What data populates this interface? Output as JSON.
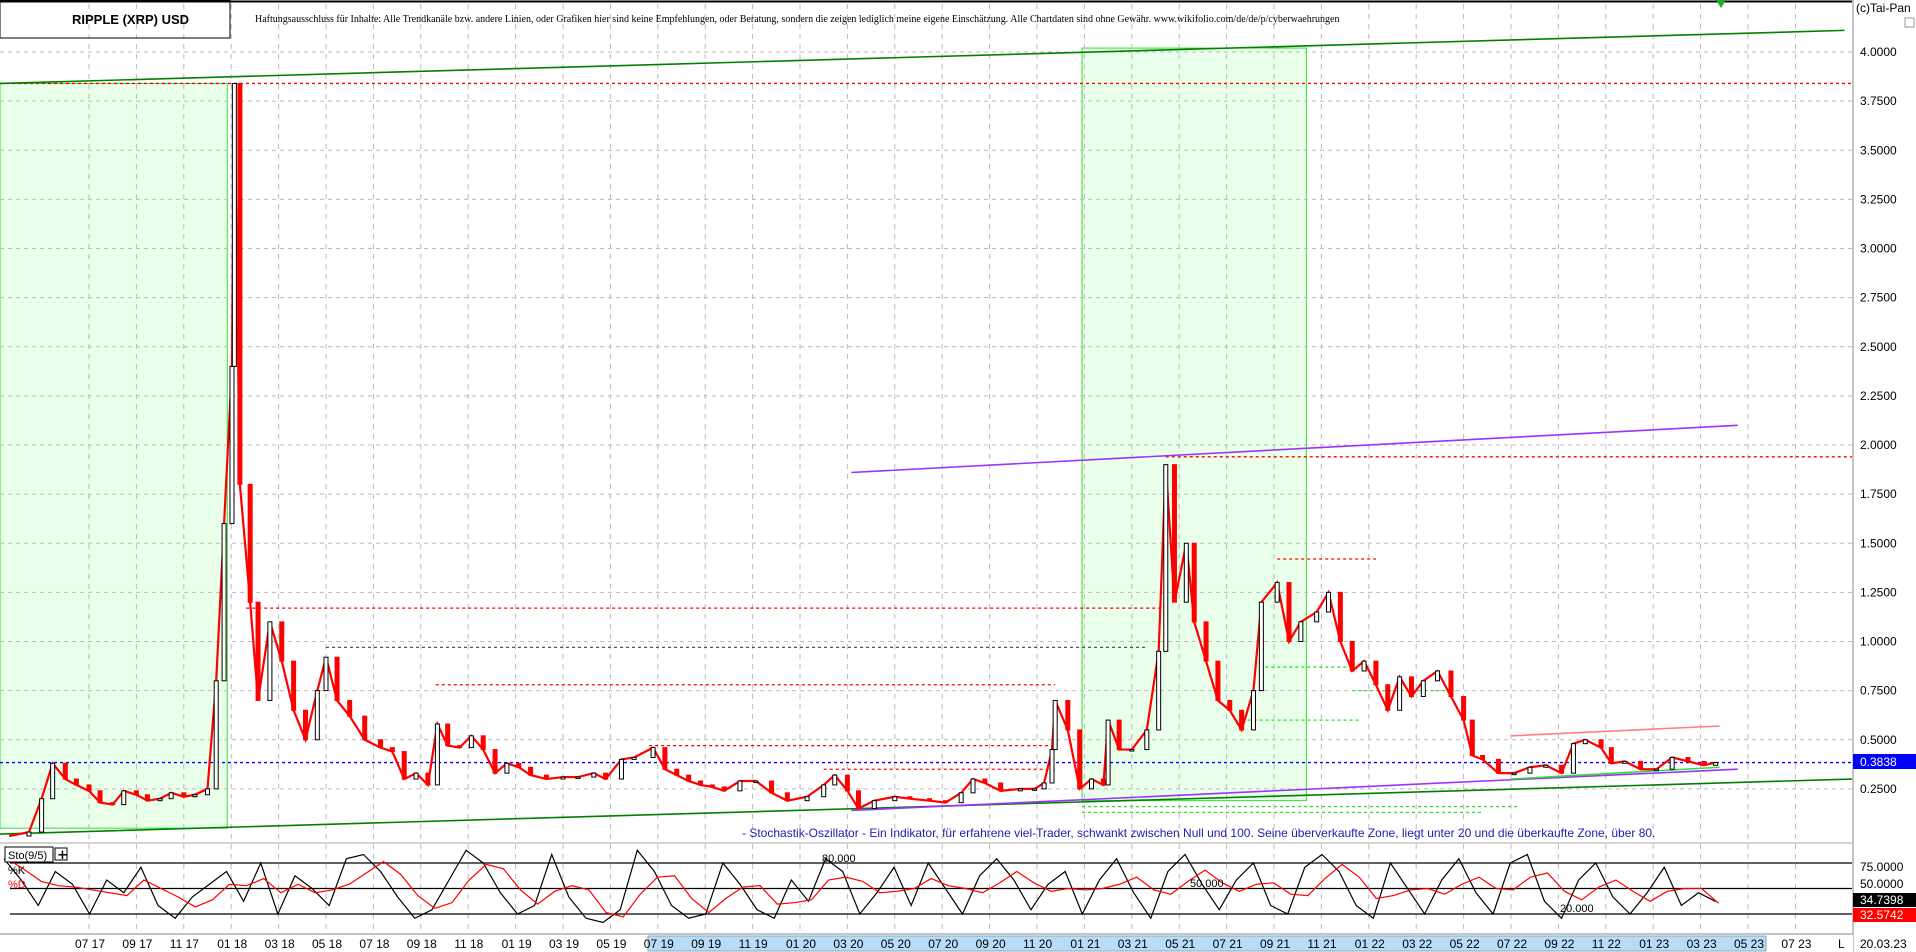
{
  "header": {
    "title": "RIPPLE (XRP) USD",
    "disclaimer": "Haftungsausschluss für Inhalte: Alle Trendkanäle bzw. andere Linien, oder Grafiken hier sind keine Empfehlungen, oder Beratung, sondern die zeigen lediglich meine eigene Einschätzung. Alle Chartdaten sind ohne Gewähr.  www.wikifolio.com/de/de/p/cyberwaehrungen",
    "copyright": "(c)Tai-Pan"
  },
  "annotation": "- Stochastik-Oszillator - Ein Indikator, für erfahrene viel-Trader, schwankt zwischen Null und 100. Seine überverkaufte Zone, liegt unter 20 und die überkaufte Zone, über 80.",
  "footer": {
    "date": "20.03.23",
    "scale_button": "L"
  },
  "colors": {
    "up": "#000000",
    "down": "#ff0000",
    "trend_green": "#008000",
    "zone_fill": "#eaffea",
    "zone_border": "#33dd33",
    "channel_purple": "#9933ff",
    "current_price": "#0000ff",
    "grid": "#bbbbbb",
    "axis_highlight": "#b8dcf8"
  },
  "chart_data": [
    {
      "type": "candlestick",
      "title": "RIPPLE (XRP) USD",
      "ylim": [
        0,
        4.0
      ],
      "yticks": [
        "0.2500",
        "0.5000",
        "0.7500",
        "1.0000",
        "1.2500",
        "1.5000",
        "1.7500",
        "2.0000",
        "2.2500",
        "2.5000",
        "2.7500",
        "3.0000",
        "3.2500",
        "3.5000",
        "3.7500",
        "4.0000"
      ],
      "xticks": [
        "07 17",
        "09 17",
        "11 17",
        "01 18",
        "03 18",
        "05 18",
        "07 18",
        "09 18",
        "11 18",
        "01 19",
        "03 19",
        "05 19",
        "07 19",
        "09 19",
        "11 19",
        "01 20",
        "03 20",
        "05 20",
        "07 20",
        "09 20",
        "11 20",
        "01 21",
        "03 21",
        "05 21",
        "07 21",
        "09 21",
        "11 21",
        "01 22",
        "03 22",
        "05 22",
        "07 22",
        "09 22",
        "11 22",
        "01 23",
        "03 23",
        "05 23",
        "07 23"
      ],
      "grid": true,
      "current_price": "0.3838",
      "series": [
        {
          "date": "2017-03-20",
          "close": 0.01
        },
        {
          "date": "2017-04-15",
          "close": 0.03
        },
        {
          "date": "2017-05-01",
          "close": 0.2
        },
        {
          "date": "2017-05-15",
          "close": 0.38
        },
        {
          "date": "2017-06-01",
          "close": 0.3
        },
        {
          "date": "2017-06-15",
          "close": 0.27
        },
        {
          "date": "2017-07-01",
          "close": 0.24
        },
        {
          "date": "2017-07-15",
          "close": 0.18
        },
        {
          "date": "2017-08-01",
          "close": 0.17
        },
        {
          "date": "2017-08-15",
          "close": 0.24
        },
        {
          "date": "2017-09-01",
          "close": 0.22
        },
        {
          "date": "2017-09-15",
          "close": 0.19
        },
        {
          "date": "2017-10-01",
          "close": 0.2
        },
        {
          "date": "2017-10-15",
          "close": 0.23
        },
        {
          "date": "2017-11-01",
          "close": 0.21
        },
        {
          "date": "2017-11-15",
          "close": 0.22
        },
        {
          "date": "2017-12-01",
          "close": 0.25
        },
        {
          "date": "2017-12-12",
          "close": 0.8
        },
        {
          "date": "2017-12-22",
          "close": 1.6
        },
        {
          "date": "2018-01-02",
          "close": 2.4
        },
        {
          "date": "2018-01-05",
          "close": 3.84
        },
        {
          "date": "2018-01-12",
          "close": 1.8
        },
        {
          "date": "2018-01-25",
          "close": 1.2
        },
        {
          "date": "2018-02-05",
          "close": 0.7
        },
        {
          "date": "2018-02-20",
          "close": 1.1
        },
        {
          "date": "2018-03-05",
          "close": 0.9
        },
        {
          "date": "2018-03-20",
          "close": 0.65
        },
        {
          "date": "2018-04-05",
          "close": 0.5
        },
        {
          "date": "2018-04-20",
          "close": 0.75
        },
        {
          "date": "2018-05-01",
          "close": 0.92
        },
        {
          "date": "2018-05-15",
          "close": 0.7
        },
        {
          "date": "2018-06-01",
          "close": 0.62
        },
        {
          "date": "2018-06-20",
          "close": 0.5
        },
        {
          "date": "2018-07-10",
          "close": 0.46
        },
        {
          "date": "2018-07-25",
          "close": 0.44
        },
        {
          "date": "2018-08-10",
          "close": 0.3
        },
        {
          "date": "2018-08-25",
          "close": 0.33
        },
        {
          "date": "2018-09-10",
          "close": 0.27
        },
        {
          "date": "2018-09-22",
          "close": 0.58
        },
        {
          "date": "2018-10-05",
          "close": 0.47
        },
        {
          "date": "2018-10-20",
          "close": 0.46
        },
        {
          "date": "2018-11-05",
          "close": 0.52
        },
        {
          "date": "2018-11-20",
          "close": 0.45
        },
        {
          "date": "2018-12-05",
          "close": 0.33
        },
        {
          "date": "2018-12-20",
          "close": 0.38
        },
        {
          "date": "2019-01-05",
          "close": 0.36
        },
        {
          "date": "2019-01-20",
          "close": 0.32
        },
        {
          "date": "2019-02-10",
          "close": 0.3
        },
        {
          "date": "2019-03-01",
          "close": 0.31
        },
        {
          "date": "2019-03-20",
          "close": 0.31
        },
        {
          "date": "2019-04-10",
          "close": 0.33
        },
        {
          "date": "2019-04-25",
          "close": 0.3
        },
        {
          "date": "2019-05-15",
          "close": 0.4
        },
        {
          "date": "2019-06-01",
          "close": 0.41
        },
        {
          "date": "2019-06-25",
          "close": 0.46
        },
        {
          "date": "2019-07-10",
          "close": 0.35
        },
        {
          "date": "2019-07-25",
          "close": 0.32
        },
        {
          "date": "2019-08-10",
          "close": 0.29
        },
        {
          "date": "2019-08-25",
          "close": 0.27
        },
        {
          "date": "2019-09-10",
          "close": 0.26
        },
        {
          "date": "2019-09-25",
          "close": 0.24
        },
        {
          "date": "2019-10-15",
          "close": 0.29
        },
        {
          "date": "2019-11-05",
          "close": 0.29
        },
        {
          "date": "2019-11-25",
          "close": 0.23
        },
        {
          "date": "2019-12-15",
          "close": 0.19
        },
        {
          "date": "2020-01-10",
          "close": 0.21
        },
        {
          "date": "2020-02-01",
          "close": 0.27
        },
        {
          "date": "2020-02-15",
          "close": 0.32
        },
        {
          "date": "2020-03-01",
          "close": 0.24
        },
        {
          "date": "2020-03-15",
          "close": 0.15
        },
        {
          "date": "2020-04-05",
          "close": 0.19
        },
        {
          "date": "2020-05-01",
          "close": 0.21
        },
        {
          "date": "2020-05-20",
          "close": 0.2
        },
        {
          "date": "2020-06-15",
          "close": 0.19
        },
        {
          "date": "2020-07-05",
          "close": 0.18
        },
        {
          "date": "2020-07-25",
          "close": 0.23
        },
        {
          "date": "2020-08-10",
          "close": 0.3
        },
        {
          "date": "2020-08-25",
          "close": 0.28
        },
        {
          "date": "2020-09-15",
          "close": 0.24
        },
        {
          "date": "2020-10-10",
          "close": 0.25
        },
        {
          "date": "2020-10-28",
          "close": 0.25
        },
        {
          "date": "2020-11-10",
          "close": 0.28
        },
        {
          "date": "2020-11-20",
          "close": 0.45
        },
        {
          "date": "2020-11-24",
          "close": 0.7
        },
        {
          "date": "2020-12-10",
          "close": 0.55
        },
        {
          "date": "2020-12-25",
          "close": 0.25
        },
        {
          "date": "2021-01-10",
          "close": 0.3
        },
        {
          "date": "2021-01-25",
          "close": 0.27
        },
        {
          "date": "2021-02-01",
          "close": 0.6
        },
        {
          "date": "2021-02-15",
          "close": 0.45
        },
        {
          "date": "2021-03-01",
          "close": 0.45
        },
        {
          "date": "2021-03-20",
          "close": 0.55
        },
        {
          "date": "2021-04-05",
          "close": 0.95
        },
        {
          "date": "2021-04-14",
          "close": 1.9
        },
        {
          "date": "2021-04-25",
          "close": 1.2
        },
        {
          "date": "2021-05-10",
          "close": 1.5
        },
        {
          "date": "2021-05-20",
          "close": 1.1
        },
        {
          "date": "2021-06-05",
          "close": 0.9
        },
        {
          "date": "2021-06-20",
          "close": 0.7
        },
        {
          "date": "2021-07-05",
          "close": 0.65
        },
        {
          "date": "2021-07-20",
          "close": 0.55
        },
        {
          "date": "2021-08-05",
          "close": 0.75
        },
        {
          "date": "2021-08-15",
          "close": 1.2
        },
        {
          "date": "2021-09-05",
          "close": 1.3
        },
        {
          "date": "2021-09-20",
          "close": 1.0
        },
        {
          "date": "2021-10-05",
          "close": 1.1
        },
        {
          "date": "2021-10-25",
          "close": 1.15
        },
        {
          "date": "2021-11-10",
          "close": 1.25
        },
        {
          "date": "2021-11-25",
          "close": 1.0
        },
        {
          "date": "2021-12-10",
          "close": 0.85
        },
        {
          "date": "2021-12-25",
          "close": 0.9
        },
        {
          "date": "2022-01-10",
          "close": 0.78
        },
        {
          "date": "2022-01-25",
          "close": 0.65
        },
        {
          "date": "2022-02-10",
          "close": 0.82
        },
        {
          "date": "2022-02-25",
          "close": 0.72
        },
        {
          "date": "2022-03-10",
          "close": 0.8
        },
        {
          "date": "2022-03-28",
          "close": 0.85
        },
        {
          "date": "2022-04-15",
          "close": 0.72
        },
        {
          "date": "2022-05-01",
          "close": 0.6
        },
        {
          "date": "2022-05-12",
          "close": 0.42
        },
        {
          "date": "2022-05-25",
          "close": 0.4
        },
        {
          "date": "2022-06-15",
          "close": 0.33
        },
        {
          "date": "2022-07-05",
          "close": 0.33
        },
        {
          "date": "2022-07-25",
          "close": 0.36
        },
        {
          "date": "2022-08-15",
          "close": 0.37
        },
        {
          "date": "2022-09-05",
          "close": 0.33
        },
        {
          "date": "2022-09-20",
          "close": 0.48
        },
        {
          "date": "2022-10-05",
          "close": 0.5
        },
        {
          "date": "2022-10-25",
          "close": 0.46
        },
        {
          "date": "2022-11-08",
          "close": 0.38
        },
        {
          "date": "2022-11-25",
          "close": 0.39
        },
        {
          "date": "2022-12-15",
          "close": 0.35
        },
        {
          "date": "2023-01-05",
          "close": 0.35
        },
        {
          "date": "2023-01-25",
          "close": 0.41
        },
        {
          "date": "2023-02-15",
          "close": 0.39
        },
        {
          "date": "2023-03-05",
          "close": 0.37
        },
        {
          "date": "2023-03-20",
          "close": 0.3838
        }
      ],
      "horizontal_lines": [
        {
          "price": 3.84,
          "from": "2017-03-08",
          "to": "2023-12-31",
          "color": "#ff0000"
        },
        {
          "price": 1.94,
          "from": "2021-04-14",
          "to": "2023-12-31",
          "color": "#ff0000"
        },
        {
          "price": 1.17,
          "from": "2018-01-20",
          "to": "2021-04-10",
          "color": "#ff0000"
        },
        {
          "price": 0.97,
          "from": "2018-05-01",
          "to": "2021-03-20",
          "color": "#555555"
        },
        {
          "price": 0.78,
          "from": "2018-09-20",
          "to": "2020-11-24",
          "color": "#ff0000"
        },
        {
          "price": 0.47,
          "from": "2019-06-20",
          "to": "2020-11-24",
          "color": "#ff0000"
        },
        {
          "price": 0.35,
          "from": "2020-02-01",
          "to": "2020-11-24",
          "color": "#ff0000"
        },
        {
          "price": 1.42,
          "from": "2021-09-05",
          "to": "2022-01-10",
          "color": "#ff0000"
        },
        {
          "price": 0.87,
          "from": "2021-08-20",
          "to": "2021-12-20",
          "color": "#33dd33"
        },
        {
          "price": 0.75,
          "from": "2021-12-10",
          "to": "2022-04-20",
          "color": "#33dd33"
        },
        {
          "price": 0.6,
          "from": "2021-07-20",
          "to": "2021-12-20",
          "color": "#33dd33"
        },
        {
          "price": 0.16,
          "from": "2020-12-28",
          "to": "2022-07-10",
          "color": "#33dd33"
        },
        {
          "price": 0.13,
          "from": "2020-12-28",
          "to": "2022-05-25",
          "color": "#33dd33"
        },
        {
          "price": 0.3838,
          "from": "2017-03-08",
          "to": "2023-12-31",
          "color": "#0000ff"
        }
      ],
      "trend_lines": [
        {
          "from": [
            "2017-03-08",
            3.84
          ],
          "to": [
            "2023-09-03",
            4.11
          ],
          "color": "#008000"
        },
        {
          "from": [
            "2017-03-08",
            0.02
          ],
          "to": [
            "2023-12-31",
            0.3
          ],
          "color": "#008000"
        },
        {
          "from": [
            "2020-03-06",
            1.86
          ],
          "to": [
            "2023-04-18",
            2.1
          ],
          "color": "#9933ff"
        },
        {
          "from": [
            "2020-03-06",
            0.14
          ],
          "to": [
            "2023-04-18",
            0.35
          ],
          "color": "#9933ff"
        },
        {
          "from": [
            "2022-07-01",
            0.52
          ],
          "to": [
            "2023-03-25",
            0.57
          ],
          "color": "#ff8080"
        },
        {
          "from": [
            "2022-07-01",
            0.3
          ],
          "to": [
            "2023-03-25",
            0.36
          ],
          "color": "#33dd33"
        }
      ],
      "zones": [
        {
          "from": "2017-03-08",
          "to": "2017-12-26",
          "low": 0.05,
          "high": 3.84
        },
        {
          "from": "2020-12-28",
          "to": "2021-10-12",
          "low": 0.19,
          "high": 4.02
        }
      ]
    },
    {
      "type": "line",
      "title": "Sto(9/5)",
      "legend": [
        "%K",
        "%D"
      ],
      "levels": [
        "80.000",
        "50.000",
        "20.000"
      ],
      "yticks": [
        "75.0000",
        "50.0000"
      ],
      "last_k": "34.7398",
      "last_d": "32.5742",
      "ylim": [
        0,
        100
      ],
      "k": [
        85,
        60,
        30,
        70,
        55,
        20,
        60,
        45,
        75,
        30,
        15,
        40,
        55,
        70,
        35,
        80,
        20,
        65,
        50,
        30,
        85,
        90,
        70,
        40,
        15,
        25,
        60,
        95,
        80,
        45,
        20,
        30,
        90,
        40,
        15,
        10,
        25,
        95,
        70,
        30,
        15,
        20,
        80,
        55,
        25,
        15,
        60,
        35,
        85,
        70,
        20,
        45,
        75,
        30,
        80,
        50,
        20,
        65,
        85,
        60,
        25,
        55,
        70,
        20,
        60,
        85,
        45,
        15,
        70,
        90,
        55,
        25,
        60,
        80,
        30,
        20,
        75,
        90,
        70,
        30,
        15,
        80,
        50,
        20,
        60,
        85,
        45,
        20,
        80,
        90,
        35,
        15,
        60,
        80,
        40,
        20,
        45,
        75,
        30,
        45,
        34.74
      ]
    }
  ]
}
